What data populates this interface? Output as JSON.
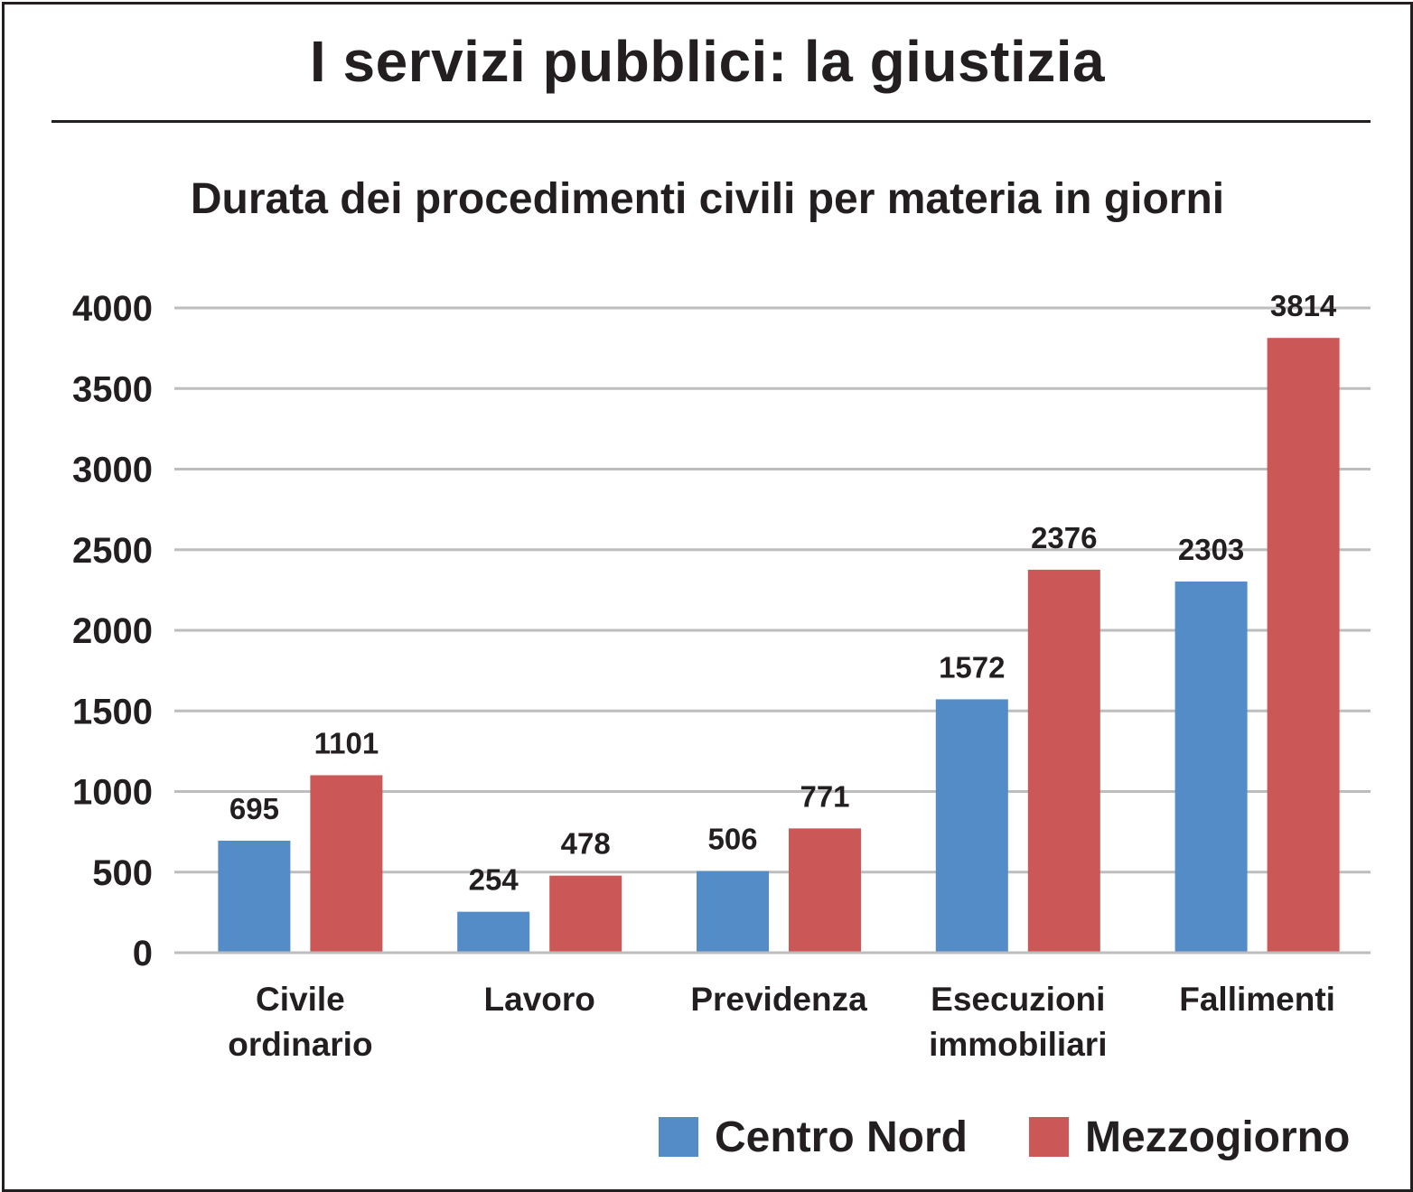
{
  "title": "I servizi pubblici: la giustizia",
  "subtitle": "Durata dei procedimenti civili per materia in giorni",
  "chart_data": {
    "type": "bar",
    "title": "Durata dei procedimenti civili per materia in giorni",
    "categories": [
      [
        "Civile",
        "ordinario"
      ],
      [
        "Lavoro"
      ],
      [
        "Previdenza"
      ],
      [
        "Esecuzioni",
        "immobiliari"
      ],
      [
        "Fallimenti"
      ]
    ],
    "series": [
      {
        "name": "Centro Nord",
        "color": "#538cc6",
        "values": [
          695,
          254,
          506,
          1572,
          2303
        ]
      },
      {
        "name": "Mezzogiorno",
        "color": "#cb5757",
        "values": [
          1101,
          478,
          771,
          2376,
          3814
        ]
      }
    ],
    "yticks": [
      "0",
      "500",
      "1000",
      "1500",
      "2000",
      "2500",
      "3000",
      "3500",
      "4000"
    ],
    "ylim": [
      0,
      4000
    ],
    "grid": true,
    "legend_position": "bottom-right"
  }
}
